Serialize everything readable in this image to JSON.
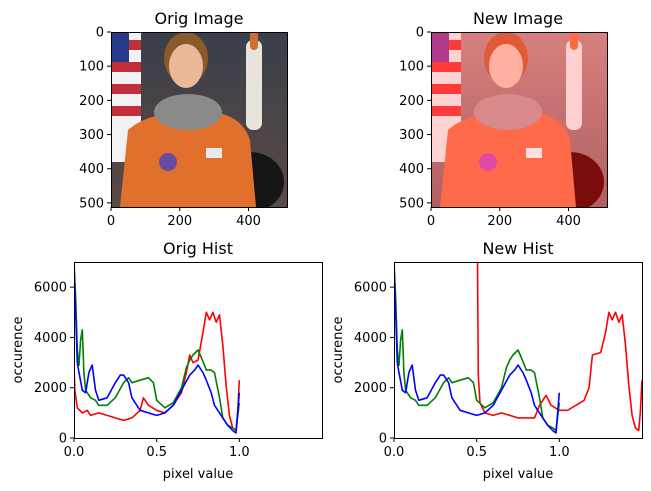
{
  "chart_data": [
    {
      "type": "image",
      "title": "Orig Image",
      "x_ticks": [
        "0",
        "200",
        "400"
      ],
      "y_ticks": [
        "0",
        "100",
        "200",
        "300",
        "400",
        "500"
      ],
      "x_range": [
        0,
        512
      ],
      "y_range": [
        0,
        512
      ],
      "image_subject": "astronaut portrait"
    },
    {
      "type": "image",
      "title": "New Image",
      "x_ticks": [
        "0",
        "200",
        "400"
      ],
      "y_ticks": [
        "0",
        "100",
        "200",
        "300",
        "400",
        "500"
      ],
      "x_range": [
        0,
        512
      ],
      "y_range": [
        0,
        512
      ],
      "image_subject": "astronaut portrait with red channel boosted"
    },
    {
      "type": "line",
      "title": "Orig Hist",
      "xlabel": "pixel value",
      "ylabel": "occurence",
      "xlim": [
        0,
        1.5
      ],
      "ylim": [
        0,
        7000
      ],
      "x_ticks": [
        "0.0",
        "0.5",
        "1.0"
      ],
      "y_ticks": [
        "0",
        "2000",
        "4000",
        "6000"
      ],
      "series": [
        {
          "color": "#ff0000",
          "points": [
            [
              0.0,
              2900
            ],
            [
              0.005,
              1900
            ],
            [
              0.02,
              1200
            ],
            [
              0.05,
              1000
            ],
            [
              0.08,
              1100
            ],
            [
              0.1,
              900
            ],
            [
              0.15,
              1000
            ],
            [
              0.2,
              900
            ],
            [
              0.25,
              800
            ],
            [
              0.3,
              700
            ],
            [
              0.35,
              800
            ],
            [
              0.4,
              1100
            ],
            [
              0.42,
              1600
            ],
            [
              0.45,
              1300
            ],
            [
              0.5,
              1100
            ],
            [
              0.55,
              1000
            ],
            [
              0.6,
              1300
            ],
            [
              0.65,
              1800
            ],
            [
              0.68,
              2600
            ],
            [
              0.7,
              3300
            ],
            [
              0.72,
              3000
            ],
            [
              0.75,
              3100
            ],
            [
              0.78,
              4200
            ],
            [
              0.8,
              5000
            ],
            [
              0.82,
              4700
            ],
            [
              0.84,
              5000
            ],
            [
              0.86,
              4600
            ],
            [
              0.88,
              4900
            ],
            [
              0.9,
              3700
            ],
            [
              0.92,
              2100
            ],
            [
              0.94,
              900
            ],
            [
              0.96,
              400
            ],
            [
              0.98,
              300
            ],
            [
              0.99,
              1000
            ],
            [
              1.0,
              2300
            ]
          ]
        },
        {
          "color": "#008000",
          "points": [
            [
              0.0,
              7000
            ],
            [
              0.01,
              5500
            ],
            [
              0.02,
              3500
            ],
            [
              0.03,
              2900
            ],
            [
              0.04,
              3900
            ],
            [
              0.05,
              4300
            ],
            [
              0.06,
              2600
            ],
            [
              0.07,
              1900
            ],
            [
              0.1,
              1600
            ],
            [
              0.13,
              1500
            ],
            [
              0.15,
              1300
            ],
            [
              0.2,
              1300
            ],
            [
              0.25,
              1600
            ],
            [
              0.3,
              2200
            ],
            [
              0.33,
              2400
            ],
            [
              0.35,
              2200
            ],
            [
              0.4,
              2300
            ],
            [
              0.45,
              2400
            ],
            [
              0.48,
              2200
            ],
            [
              0.5,
              1500
            ],
            [
              0.55,
              1200
            ],
            [
              0.6,
              1400
            ],
            [
              0.65,
              2000
            ],
            [
              0.68,
              2800
            ],
            [
              0.7,
              3100
            ],
            [
              0.72,
              3300
            ],
            [
              0.75,
              3500
            ],
            [
              0.77,
              3200
            ],
            [
              0.8,
              2700
            ],
            [
              0.83,
              2700
            ],
            [
              0.85,
              2600
            ],
            [
              0.88,
              1600
            ],
            [
              0.9,
              800
            ],
            [
              0.93,
              500
            ],
            [
              0.96,
              400
            ],
            [
              0.98,
              300
            ],
            [
              1.0,
              1400
            ]
          ]
        },
        {
          "color": "#0000ff",
          "points": [
            [
              0.0,
              6900
            ],
            [
              0.01,
              5000
            ],
            [
              0.02,
              3000
            ],
            [
              0.03,
              2600
            ],
            [
              0.05,
              1900
            ],
            [
              0.07,
              1800
            ],
            [
              0.09,
              2600
            ],
            [
              0.11,
              2900
            ],
            [
              0.13,
              1900
            ],
            [
              0.15,
              1500
            ],
            [
              0.2,
              1600
            ],
            [
              0.25,
              2200
            ],
            [
              0.28,
              2500
            ],
            [
              0.3,
              2500
            ],
            [
              0.33,
              2200
            ],
            [
              0.35,
              1600
            ],
            [
              0.4,
              1100
            ],
            [
              0.45,
              1000
            ],
            [
              0.5,
              900
            ],
            [
              0.55,
              1000
            ],
            [
              0.6,
              1300
            ],
            [
              0.65,
              1900
            ],
            [
              0.7,
              2500
            ],
            [
              0.73,
              2700
            ],
            [
              0.75,
              2900
            ],
            [
              0.78,
              2600
            ],
            [
              0.8,
              2300
            ],
            [
              0.83,
              1800
            ],
            [
              0.85,
              1300
            ],
            [
              0.9,
              800
            ],
            [
              0.93,
              500
            ],
            [
              0.96,
              300
            ],
            [
              0.98,
              200
            ],
            [
              1.0,
              1800
            ]
          ]
        }
      ]
    },
    {
      "type": "line",
      "title": "New Hist",
      "xlabel": "pixel value",
      "ylabel": "occurence",
      "xlim": [
        0,
        1.5
      ],
      "ylim": [
        0,
        7000
      ],
      "x_ticks": [
        "0.0",
        "0.5",
        "1.0"
      ],
      "y_ticks": [
        "0",
        "2000",
        "4000",
        "6000"
      ],
      "series": [
        {
          "color": "#ff0000",
          "points": [
            [
              0.505,
              7000
            ],
            [
              0.51,
              2500
            ],
            [
              0.52,
              1400
            ],
            [
              0.55,
              1000
            ],
            [
              0.6,
              900
            ],
            [
              0.65,
              1000
            ],
            [
              0.7,
              900
            ],
            [
              0.75,
              800
            ],
            [
              0.8,
              800
            ],
            [
              0.85,
              800
            ],
            [
              0.88,
              1300
            ],
            [
              0.92,
              1700
            ],
            [
              0.95,
              1300
            ],
            [
              1.0,
              1100
            ],
            [
              1.05,
              1100
            ],
            [
              1.1,
              1300
            ],
            [
              1.15,
              1500
            ],
            [
              1.18,
              2000
            ],
            [
              1.2,
              3300
            ],
            [
              1.25,
              3400
            ],
            [
              1.28,
              4200
            ],
            [
              1.3,
              5000
            ],
            [
              1.32,
              4700
            ],
            [
              1.34,
              5000
            ],
            [
              1.36,
              4600
            ],
            [
              1.38,
              4900
            ],
            [
              1.4,
              3700
            ],
            [
              1.42,
              2100
            ],
            [
              1.44,
              900
            ],
            [
              1.46,
              400
            ],
            [
              1.48,
              300
            ],
            [
              1.49,
              1000
            ],
            [
              1.5,
              2300
            ]
          ]
        },
        {
          "color": "#008000",
          "points": [
            [
              0.0,
              7000
            ],
            [
              0.01,
              5500
            ],
            [
              0.02,
              3500
            ],
            [
              0.03,
              2900
            ],
            [
              0.04,
              3900
            ],
            [
              0.05,
              4300
            ],
            [
              0.06,
              2600
            ],
            [
              0.07,
              1900
            ],
            [
              0.1,
              1600
            ],
            [
              0.13,
              1500
            ],
            [
              0.15,
              1300
            ],
            [
              0.2,
              1300
            ],
            [
              0.25,
              1600
            ],
            [
              0.3,
              2200
            ],
            [
              0.33,
              2400
            ],
            [
              0.35,
              2200
            ],
            [
              0.4,
              2300
            ],
            [
              0.45,
              2400
            ],
            [
              0.48,
              2200
            ],
            [
              0.5,
              1500
            ],
            [
              0.55,
              1200
            ],
            [
              0.6,
              1400
            ],
            [
              0.65,
              2000
            ],
            [
              0.68,
              2800
            ],
            [
              0.7,
              3100
            ],
            [
              0.72,
              3300
            ],
            [
              0.75,
              3500
            ],
            [
              0.77,
              3200
            ],
            [
              0.8,
              2700
            ],
            [
              0.83,
              2700
            ],
            [
              0.85,
              2600
            ],
            [
              0.88,
              1600
            ],
            [
              0.9,
              800
            ],
            [
              0.93,
              500
            ],
            [
              0.96,
              400
            ],
            [
              0.98,
              300
            ],
            [
              1.0,
              1400
            ]
          ]
        },
        {
          "color": "#0000ff",
          "points": [
            [
              0.0,
              6900
            ],
            [
              0.01,
              5000
            ],
            [
              0.02,
              3000
            ],
            [
              0.03,
              2600
            ],
            [
              0.05,
              1900
            ],
            [
              0.07,
              1800
            ],
            [
              0.09,
              2600
            ],
            [
              0.11,
              2900
            ],
            [
              0.13,
              1900
            ],
            [
              0.15,
              1500
            ],
            [
              0.2,
              1600
            ],
            [
              0.25,
              2200
            ],
            [
              0.28,
              2500
            ],
            [
              0.3,
              2500
            ],
            [
              0.33,
              2200
            ],
            [
              0.35,
              1600
            ],
            [
              0.4,
              1100
            ],
            [
              0.45,
              1000
            ],
            [
              0.5,
              900
            ],
            [
              0.55,
              1000
            ],
            [
              0.6,
              1300
            ],
            [
              0.65,
              1900
            ],
            [
              0.7,
              2500
            ],
            [
              0.73,
              2700
            ],
            [
              0.75,
              2900
            ],
            [
              0.78,
              2600
            ],
            [
              0.8,
              2300
            ],
            [
              0.83,
              1800
            ],
            [
              0.85,
              1300
            ],
            [
              0.9,
              800
            ],
            [
              0.93,
              500
            ],
            [
              0.96,
              300
            ],
            [
              0.98,
              200
            ],
            [
              1.0,
              1800
            ]
          ]
        }
      ]
    }
  ]
}
